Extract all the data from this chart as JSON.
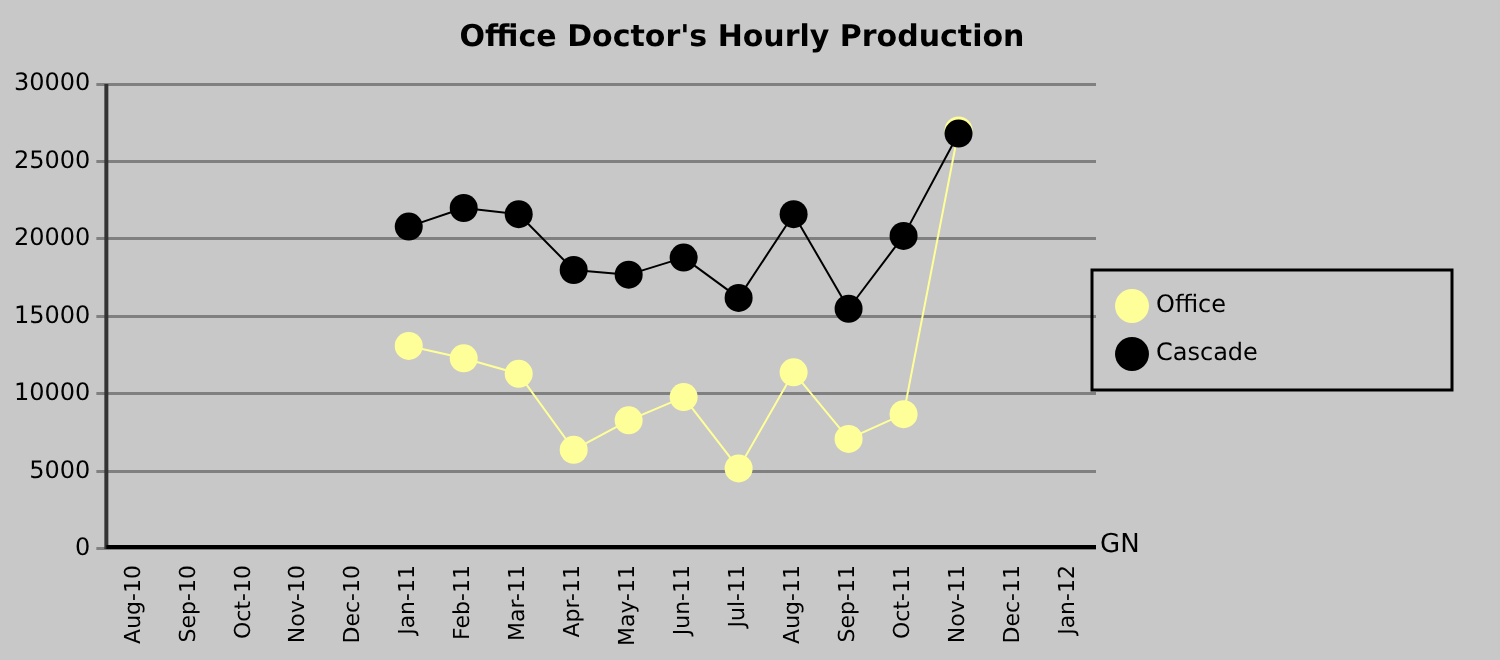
{
  "chart_data": {
    "type": "line",
    "title": "Office Doctor's Hourly Production",
    "categories": [
      "Aug-10",
      "Sep-10",
      "Oct-10",
      "Nov-10",
      "Dec-10",
      "Jan-11",
      "Feb-11",
      "Mar-11",
      "Apr-11",
      "May-11",
      "Jun-11",
      "Jul-11",
      "Aug-11",
      "Sep-11",
      "Oct-11",
      "Nov-11",
      "Dec-11",
      "Jan-12"
    ],
    "series": [
      {
        "name": "Office",
        "color": "#ffff99",
        "values": [
          null,
          null,
          null,
          null,
          null,
          13100,
          12300,
          11300,
          6400,
          8300,
          9800,
          5200,
          11400,
          7100,
          8700,
          27000,
          null,
          null
        ]
      },
      {
        "name": "Cascade",
        "color": "#000000",
        "values": [
          null,
          null,
          null,
          null,
          null,
          20800,
          22000,
          21600,
          18000,
          17700,
          18800,
          16200,
          21600,
          15500,
          20200,
          26800,
          null,
          null
        ]
      }
    ],
    "ylim": [
      0,
      30000
    ],
    "yticks": [
      0,
      5000,
      10000,
      15000,
      20000,
      25000,
      30000
    ],
    "grid": "y",
    "legend": "right",
    "marker": "circle",
    "line_style": "solid",
    "annotations": [
      "GN"
    ]
  }
}
